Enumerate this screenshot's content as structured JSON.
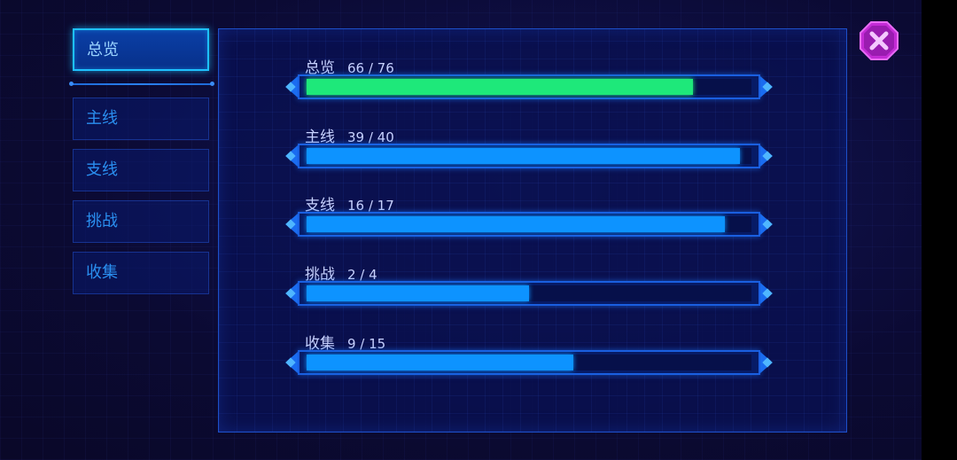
{
  "sidebar": {
    "items": [
      {
        "label": "总览",
        "active": true
      },
      {
        "label": "主线",
        "active": false
      },
      {
        "label": "支线",
        "active": false
      },
      {
        "label": "挑战",
        "active": false
      },
      {
        "label": "收集",
        "active": false
      }
    ]
  },
  "progress": [
    {
      "label": "总览",
      "count": "66 / 76",
      "done": 66,
      "total": 76,
      "color": "#1ee87a"
    },
    {
      "label": "主线",
      "count": "39 / 40",
      "done": 39,
      "total": 40,
      "color": "#0d93ff"
    },
    {
      "label": "支线",
      "count": "16 / 17",
      "done": 16,
      "total": 17,
      "color": "#0d93ff"
    },
    {
      "label": "挑战",
      "count": "2 / 4",
      "done": 2,
      "total": 4,
      "color": "#0d93ff"
    },
    {
      "label": "收集",
      "count": "9 / 15",
      "done": 9,
      "total": 15,
      "color": "#0d93ff"
    }
  ],
  "close_icon": "close-icon",
  "colors": {
    "accent": "#1ec1ff",
    "close": "#c42bd6"
  }
}
